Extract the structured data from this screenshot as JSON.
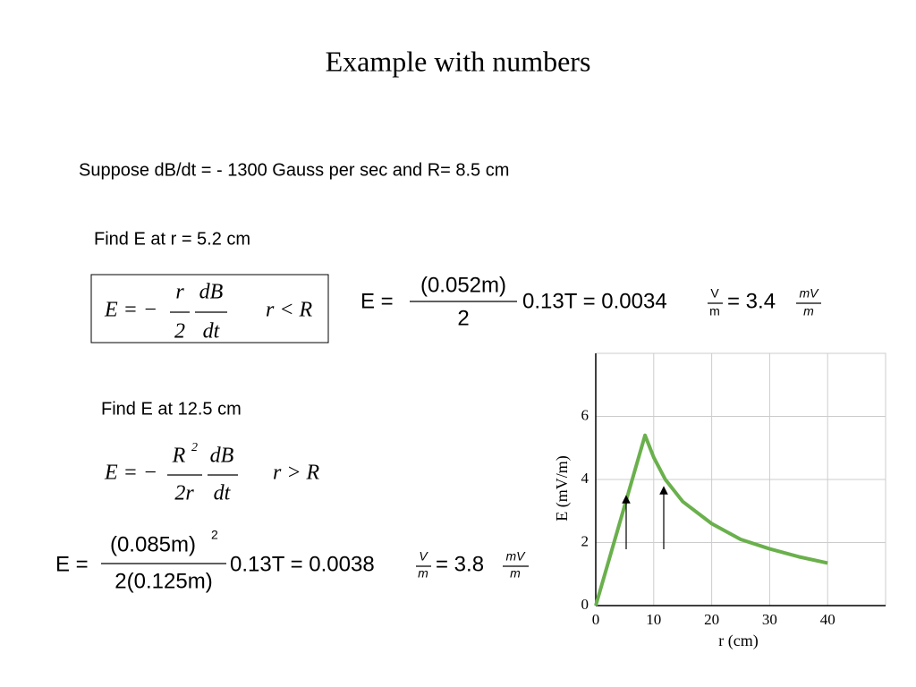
{
  "title": "Example with numbers",
  "given": "Suppose dB/dt = - 1300 Gauss per sec and R= 8.5 cm",
  "part1": {
    "prompt": "Find E at r = 5.2 cm",
    "formula": {
      "lhs": "E = −",
      "num1": "r",
      "den1": "2",
      "num2": "dB",
      "den2": "dt",
      "condition": "r < R"
    },
    "result": {
      "lhs": "E =",
      "num": "(0.052m)",
      "den": "2",
      "mid": "0.13T = 0.0034",
      "unit1_num": "V",
      "unit1_den": "m",
      "eq": "= 3.4",
      "unit2_num": "mV",
      "unit2_den": "m"
    }
  },
  "part2": {
    "prompt": "Find E at 12.5 cm",
    "formula": {
      "lhs": "E = −",
      "num1": "R",
      "num1_sup": "2",
      "den1": "2r",
      "num2": "dB",
      "den2": "dt",
      "condition": "r > R"
    },
    "result": {
      "lhs": "E =",
      "num": "(0.085m)",
      "num_sup": "2",
      "den": "2(0.125m)",
      "mid": "0.13T = 0.0038",
      "unit1_num": "V",
      "unit1_den": "m",
      "eq": "= 3.8",
      "unit2_num": "mV",
      "unit2_den": "m"
    }
  },
  "chart_data": {
    "type": "line",
    "xlabel": "r  (cm)",
    "ylabel": "E (mV/m)",
    "x": [
      0,
      8.5,
      10,
      12,
      15,
      20,
      25,
      30,
      35,
      40
    ],
    "series": [
      {
        "color": "#6ab04c",
        "values": [
          0,
          5.4,
          4.7,
          4.0,
          3.3,
          2.6,
          2.1,
          1.8,
          1.55,
          1.35
        ]
      }
    ],
    "xlim": [
      0,
      50
    ],
    "ylim": [
      0,
      8
    ],
    "xticks": [
      0,
      10,
      20,
      30,
      40
    ],
    "yticks": [
      0,
      2,
      4,
      6
    ],
    "grid": true
  }
}
